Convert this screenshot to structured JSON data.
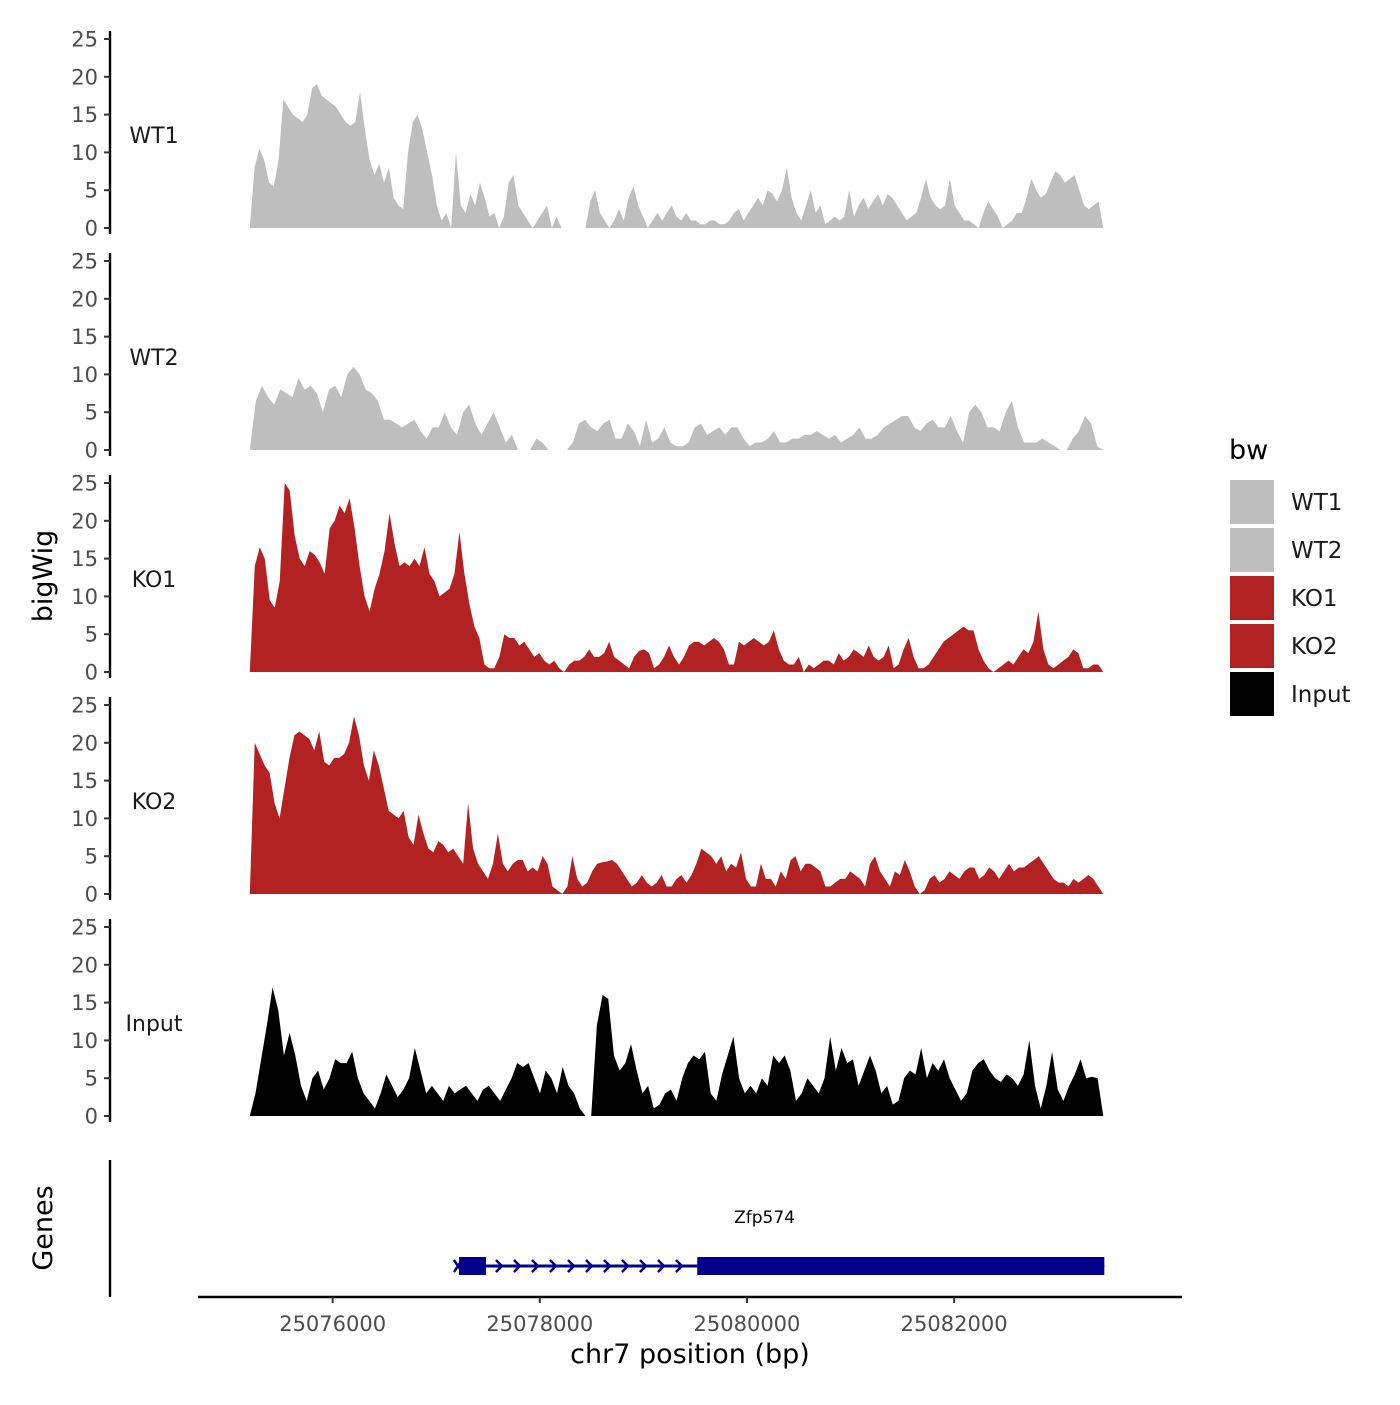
{
  "chart_data": {
    "type": "area",
    "title": "",
    "xlabel": "chr7 position (bp)",
    "ylabel": "bigWig",
    "gene_track_label": "Genes",
    "xlim": [
      25074700,
      25084200
    ],
    "x_ticks": [
      {
        "value": 25076000,
        "label": "25076000"
      },
      {
        "value": 25078000,
        "label": "25078000"
      },
      {
        "value": 25080000,
        "label": "25080000"
      },
      {
        "value": 25082000,
        "label": "25082000"
      }
    ],
    "ylim": [
      0,
      25
    ],
    "y_ticks": [
      {
        "value": 0,
        "label": "0"
      },
      {
        "value": 5,
        "label": "5"
      },
      {
        "value": 10,
        "label": "10"
      },
      {
        "value": 15,
        "label": "15"
      },
      {
        "value": 20,
        "label": "20"
      },
      {
        "value": 25,
        "label": "25"
      }
    ],
    "legend": {
      "title": "bw",
      "position": "right",
      "entries": [
        {
          "label": "WT1",
          "color": "#bebebe"
        },
        {
          "label": "WT2",
          "color": "#bebebe"
        },
        {
          "label": "KO1",
          "color": "#b22222"
        },
        {
          "label": "KO2",
          "color": "#b22222"
        },
        {
          "label": "Input",
          "color": "#000000"
        }
      ]
    },
    "series": [
      {
        "name": "WT1",
        "color": "#bebebe",
        "x_start": 25075200,
        "x_end": 25083440,
        "values": [
          0,
          8,
          10.5,
          9,
          6,
          5.5,
          9,
          17,
          16,
          15,
          14.5,
          14,
          15,
          18.5,
          19,
          17.5,
          17,
          16.5,
          16,
          15,
          14,
          13.5,
          14,
          18,
          13,
          9,
          7,
          8.5,
          6,
          8,
          4,
          3,
          2.5,
          10,
          14,
          15,
          13,
          10,
          7,
          3,
          1,
          2,
          0,
          10,
          3,
          2,
          4.5,
          3,
          6,
          4,
          1.5,
          2,
          0,
          1.5,
          6,
          7,
          3,
          2,
          1,
          0,
          1,
          2,
          3,
          0,
          1.5,
          0,
          0,
          0,
          0,
          0,
          0,
          3.5,
          5,
          2,
          1,
          0,
          1,
          2.5,
          1,
          4,
          5.5,
          3,
          1.5,
          0,
          1,
          2,
          1,
          2,
          3,
          1.5,
          1,
          2,
          1,
          1,
          0.5,
          0.5,
          1,
          1,
          0.5,
          0.5,
          1,
          2,
          2.5,
          1,
          2,
          3,
          4,
          3,
          5,
          4.5,
          3.5,
          5,
          8,
          4,
          2,
          1,
          3,
          5,
          2,
          3,
          0.5,
          1,
          1.5,
          1,
          1.5,
          5,
          1.5,
          3,
          4,
          2.5,
          3.5,
          4.5,
          3,
          4.5,
          4,
          3,
          2,
          1,
          1.5,
          2,
          4,
          6.5,
          4,
          3,
          2.5,
          3,
          6.5,
          3,
          2,
          1,
          1,
          0.5,
          0,
          2,
          3.5,
          2.5,
          1.5,
          0,
          0.5,
          1,
          2,
          2,
          4,
          6.5,
          5,
          4,
          4.5,
          6,
          7.5,
          7,
          6,
          6.5,
          7,
          5,
          3,
          2.5,
          3,
          3.5,
          0
        ]
      },
      {
        "name": "WT2",
        "color": "#bebebe",
        "x_start": 25075200,
        "x_end": 25083440,
        "values": [
          0,
          6.5,
          8.5,
          7,
          6,
          8,
          7.5,
          7,
          9.5,
          8,
          8.5,
          7.5,
          5,
          8,
          8.5,
          7,
          10,
          11,
          10,
          8,
          7.5,
          6.5,
          4,
          4,
          3.5,
          3,
          3.5,
          4,
          2.5,
          1.5,
          3,
          3,
          5,
          3,
          2,
          5,
          6,
          3.5,
          2,
          3.5,
          5,
          3,
          1,
          2,
          0,
          0,
          0,
          1.5,
          1,
          0,
          0,
          0,
          0,
          1,
          3.5,
          4,
          3,
          2.5,
          3.5,
          4,
          1.5,
          1.5,
          3.5,
          2.5,
          0.5,
          4,
          1,
          1.5,
          3,
          1,
          0.5,
          0.5,
          1,
          3,
          3.5,
          2,
          2.5,
          3,
          2,
          3,
          3,
          1.5,
          0.5,
          1,
          1,
          1.5,
          2.5,
          1,
          1,
          1.5,
          1.5,
          2,
          2,
          2.5,
          2,
          1.5,
          2,
          1,
          1.5,
          2,
          3,
          1.5,
          1.5,
          2,
          3,
          3.5,
          4,
          4.5,
          4.5,
          3,
          2.5,
          3.5,
          4,
          3,
          3,
          4.5,
          2.5,
          1,
          5,
          6,
          5,
          3,
          3,
          2.5,
          5,
          6.5,
          3,
          1,
          1,
          1,
          1.5,
          1,
          0.5,
          0,
          0,
          1.5,
          2.5,
          4.5,
          3.5,
          0.5,
          0
        ]
      },
      {
        "name": "KO1",
        "color": "#b22222",
        "x_start": 25075200,
        "x_end": 25083440,
        "values": [
          0,
          14,
          16.5,
          15,
          9.5,
          8.5,
          12,
          25,
          24,
          18,
          15,
          14,
          16,
          15.5,
          14.5,
          13,
          19,
          20,
          22,
          21,
          23,
          19,
          14,
          10,
          8,
          11,
          13,
          16,
          21,
          17,
          14,
          14.5,
          14,
          15,
          14,
          16.5,
          13,
          12,
          10,
          10.5,
          11,
          13,
          18.5,
          13,
          9,
          6,
          4.5,
          1,
          0.5,
          0.5,
          2,
          5,
          4.5,
          4.5,
          3.5,
          4,
          3,
          2,
          2.5,
          1.5,
          1,
          1.5,
          0.5,
          0,
          1,
          1.5,
          1.5,
          2,
          3,
          2,
          2,
          2.5,
          4,
          2,
          1.5,
          1,
          0.5,
          2,
          2.8,
          3,
          2.5,
          0.5,
          1,
          2,
          3.5,
          2,
          1,
          2,
          3.5,
          4,
          4,
          3.5,
          4,
          4.5,
          4,
          3,
          1,
          1,
          4,
          3.5,
          4,
          4.5,
          4,
          3.5,
          4,
          5.5,
          3,
          1.5,
          1,
          1,
          2,
          0,
          1,
          0.5,
          1,
          1.5,
          1.5,
          1,
          2.5,
          1.5,
          2,
          3,
          2.5,
          2,
          3.5,
          2,
          1.5,
          2,
          3.5,
          0.5,
          1,
          3,
          4.5,
          2,
          0.5,
          0.5,
          1,
          2,
          3,
          4,
          4.5,
          5,
          5.5,
          6,
          5.5,
          5.5,
          3,
          1.5,
          0.5,
          0,
          0.5,
          1,
          1.5,
          1,
          2,
          3,
          2.5,
          4,
          8,
          3,
          1,
          0.5,
          1,
          1.5,
          2,
          3,
          2.5,
          0.5,
          0.5,
          1,
          1,
          0
        ]
      },
      {
        "name": "KO2",
        "color": "#b22222",
        "x_start": 25075200,
        "x_end": 25083440,
        "values": [
          0,
          20,
          18.5,
          17,
          16,
          12,
          10,
          14,
          18,
          21,
          21.5,
          21,
          20.5,
          19,
          21.5,
          17.5,
          17,
          18,
          18,
          18.5,
          20,
          23.5,
          21,
          17,
          15,
          19,
          17,
          14,
          11,
          10.5,
          10,
          11,
          7.5,
          6.5,
          10.5,
          8,
          6,
          5.5,
          7,
          6.5,
          5.5,
          6,
          5,
          4,
          12,
          6,
          4,
          3,
          2,
          4,
          8,
          4,
          3,
          4,
          4.5,
          4.5,
          3,
          3.5,
          3,
          5,
          4,
          1,
          0.5,
          0,
          1,
          5,
          2,
          1,
          1.5,
          3,
          4,
          4.2,
          4.3,
          4.5,
          4,
          3,
          2,
          1,
          1.5,
          2.5,
          1.5,
          1,
          1.5,
          2.5,
          1,
          1,
          2,
          2.5,
          1.5,
          2.5,
          4,
          6,
          5.5,
          5,
          4,
          5,
          3,
          4,
          3.5,
          5.5,
          2,
          1,
          1,
          4,
          2,
          2,
          1,
          3,
          2,
          4.5,
          5,
          3,
          4,
          4,
          3.5,
          3,
          1,
          1,
          1.5,
          2,
          2,
          3,
          2.5,
          2,
          1,
          4,
          5,
          3,
          2,
          1,
          3,
          2.5,
          4.5,
          3,
          1,
          0,
          0.5,
          2,
          2.5,
          1.5,
          2,
          3,
          2.5,
          2,
          3,
          3.5,
          3.5,
          2,
          2.5,
          3.5,
          3,
          2,
          3,
          4,
          3,
          3.5,
          3.5,
          4,
          4.5,
          5,
          4,
          3,
          2,
          1.5,
          1.5,
          1,
          2,
          1.5,
          2,
          2.5,
          2,
          1,
          0
        ]
      },
      {
        "name": "Input",
        "color": "#000000",
        "x_start": 25075200,
        "x_end": 25083440,
        "values": [
          0,
          3,
          7.5,
          12,
          17,
          14,
          8,
          11,
          8,
          4,
          2,
          5,
          6,
          3.5,
          5,
          7.5,
          7,
          7,
          8.5,
          5,
          3,
          2,
          1,
          3,
          5.5,
          4,
          2.5,
          3.5,
          5,
          9,
          6,
          3,
          4,
          3,
          2,
          4,
          3,
          3.5,
          4,
          3,
          2,
          3.5,
          4,
          3,
          2,
          3.5,
          5,
          7,
          6.5,
          7,
          5,
          3,
          6,
          5,
          3,
          6.5,
          4,
          3,
          1,
          0,
          0,
          12,
          16,
          15.5,
          8,
          6,
          7,
          9.5,
          6,
          3,
          4,
          1,
          1.5,
          3,
          3.5,
          2,
          5,
          7,
          8,
          7.5,
          8.5,
          3,
          2,
          5.5,
          8,
          10.5,
          5,
          3,
          4,
          3,
          5,
          4,
          8,
          7,
          8,
          6,
          2,
          3,
          5,
          4,
          3,
          5,
          10.5,
          6,
          9,
          7,
          7.5,
          4,
          6,
          8,
          6,
          3,
          4,
          1.5,
          2,
          5,
          6,
          5.5,
          9,
          5,
          7,
          6,
          7.5,
          5,
          3.5,
          2,
          3,
          6,
          7,
          7.5,
          6,
          5,
          4.5,
          5.5,
          5,
          4,
          5.5,
          10,
          4,
          1,
          4,
          8.5,
          3.5,
          2,
          4,
          5.5,
          7.5,
          5,
          5.2,
          5,
          0
        ]
      }
    ],
    "gene": {
      "name": "Zfp574",
      "color": "#00008b",
      "start": 25077200,
      "end": 25083450,
      "strand": "+",
      "exons": [
        {
          "start": 25077220,
          "end": 25077480
        },
        {
          "start": 25079520,
          "end": 25083450
        }
      ]
    }
  }
}
